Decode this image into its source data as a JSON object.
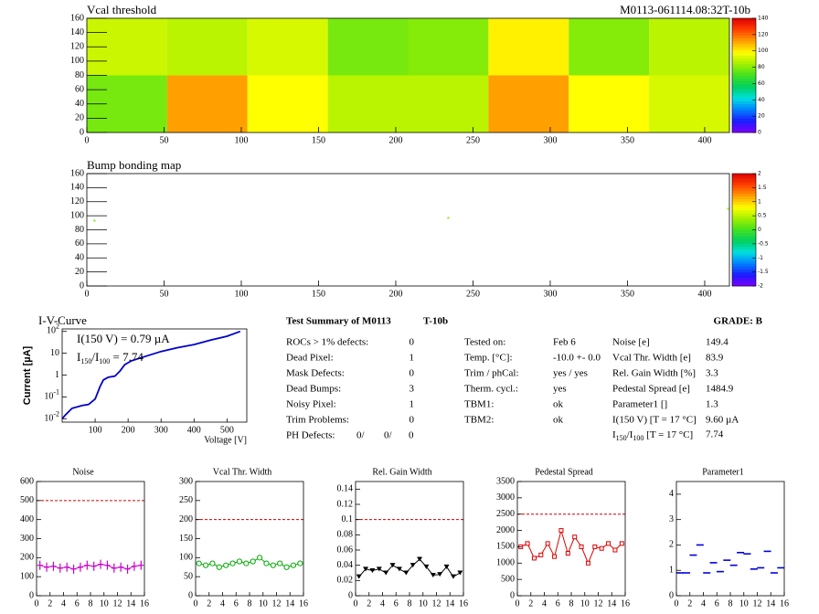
{
  "chart_data": [
    {
      "type": "heatmap",
      "title": "Vcal threshold",
      "subtitle": "M0113-061114.08:32T-10b",
      "x_edges": [
        0,
        52,
        104,
        156,
        208,
        260,
        312,
        364,
        416
      ],
      "y_edges": [
        0,
        80,
        160
      ],
      "z": [
        [
          78,
          112,
          98,
          88,
          88,
          112,
          98,
          92
        ],
        [
          90,
          88,
          92,
          78,
          80,
          100,
          80,
          88
        ]
      ],
      "xlim": [
        0,
        416
      ],
      "ylim": [
        0,
        160
      ],
      "xticks": [
        0,
        50,
        100,
        150,
        200,
        250,
        300,
        350,
        400
      ],
      "yticks": [
        0,
        20,
        40,
        60,
        80,
        100,
        120,
        140,
        160
      ],
      "zlim": [
        0,
        140
      ],
      "zticks": [
        0,
        20,
        40,
        60,
        80,
        100,
        120,
        140
      ],
      "colormap": [
        "#7f00ff",
        "#1a1aff",
        "#0080ff",
        "#00e0e0",
        "#00d060",
        "#40e020",
        "#a0f000",
        "#ffff00",
        "#ffa000",
        "#ff4000",
        "#e00000"
      ]
    },
    {
      "type": "heatmap",
      "title": "Bump bonding map",
      "x": [
        5,
        234,
        415
      ],
      "y": [
        93,
        97,
        110
      ],
      "values": [
        0.2,
        0.3,
        0.5
      ],
      "xlim": [
        0,
        416
      ],
      "ylim": [
        0,
        160
      ],
      "xticks": [
        0,
        50,
        100,
        150,
        200,
        250,
        300,
        350,
        400
      ],
      "yticks": [
        0,
        20,
        40,
        60,
        80,
        100,
        120,
        140,
        160
      ],
      "zlim": [
        -2,
        2
      ],
      "zticks": [
        -2,
        -1.5,
        -1,
        -0.5,
        0,
        0.5,
        1,
        1.5,
        2
      ],
      "colormap": [
        "#7f00ff",
        "#1a1aff",
        "#0080ff",
        "#00e0e0",
        "#00d060",
        "#40e020",
        "#a0f000",
        "#ffff00",
        "#ffa000",
        "#ff4000",
        "#e00000"
      ]
    },
    {
      "type": "line",
      "title": "I-V-Curve",
      "xlabel": "Voltage [V]",
      "ylabel": "Current [µA]",
      "log_y": true,
      "color": "#0000cc",
      "x": [
        0,
        10,
        30,
        60,
        80,
        100,
        115,
        125,
        140,
        160,
        175,
        190,
        210,
        250,
        300,
        350,
        400,
        450,
        500,
        540
      ],
      "values": [
        0.01,
        0.015,
        0.03,
        0.04,
        0.045,
        0.08,
        0.3,
        0.6,
        0.8,
        0.9,
        1.5,
        3,
        4.5,
        7,
        12,
        18,
        25,
        40,
        60,
        100
      ],
      "xlim": [
        0,
        560
      ],
      "ylim": [
        0.007,
        130
      ],
      "xticks": [
        100,
        200,
        300,
        400,
        500
      ],
      "yticks": [
        {
          "value": 0.01,
          "label": [
            "10",
            "-2"
          ]
        },
        {
          "value": 0.1,
          "label": [
            "10",
            "-1"
          ]
        },
        {
          "value": 1,
          "label": "1"
        },
        {
          "value": 10,
          "label": "10"
        },
        {
          "value": 100,
          "label": [
            "10",
            "2"
          ]
        }
      ],
      "annotations": [
        [
          "I(150 V) = 0.79 µA"
        ],
        [
          "I",
          "150",
          "/I",
          "100",
          " =  7.74"
        ]
      ]
    },
    {
      "type": "roc",
      "title": "Noise",
      "marker": "cross",
      "color": "#cc00cc",
      "threshold": 500,
      "x": [
        0.5,
        1.5,
        2.5,
        3.5,
        4.5,
        5.5,
        6.5,
        7.5,
        8.5,
        9.5,
        10.5,
        11.5,
        12.5,
        13.5,
        14.5,
        15.5
      ],
      "values": [
        160,
        150,
        155,
        145,
        150,
        140,
        150,
        160,
        155,
        165,
        160,
        145,
        150,
        140,
        155,
        160
      ],
      "xlim": [
        0,
        16
      ],
      "ylim": [
        0,
        600
      ],
      "xticks": [
        0,
        2,
        4,
        6,
        8,
        10,
        12,
        14,
        16
      ],
      "yticks": [
        0,
        100,
        200,
        300,
        400,
        500,
        600
      ]
    },
    {
      "type": "roc",
      "title": "Vcal Thr. Width",
      "marker": "circle",
      "color": "#00aa00",
      "threshold": 200,
      "x": [
        0.5,
        1.5,
        2.5,
        3.5,
        4.5,
        5.5,
        6.5,
        7.5,
        8.5,
        9.5,
        10.5,
        11.5,
        12.5,
        13.5,
        14.5,
        15.5
      ],
      "values": [
        85,
        80,
        85,
        75,
        80,
        85,
        90,
        85,
        90,
        100,
        85,
        80,
        85,
        75,
        80,
        85
      ],
      "xlim": [
        0,
        16
      ],
      "ylim": [
        0,
        300
      ],
      "xticks": [
        0,
        2,
        4,
        6,
        8,
        10,
        12,
        14,
        16
      ],
      "yticks": [
        0,
        50,
        100,
        150,
        200,
        250,
        300
      ]
    },
    {
      "type": "roc",
      "title": "Rel. Gain Width",
      "marker": "triangle",
      "color": "#000000",
      "threshold": 0.1,
      "x": [
        0.5,
        1.5,
        2.5,
        3.5,
        4.5,
        5.5,
        6.5,
        7.5,
        8.5,
        9.5,
        10.5,
        11.5,
        12.5,
        13.5,
        14.5,
        15.5
      ],
      "values": [
        0.025,
        0.035,
        0.033,
        0.035,
        0.03,
        0.04,
        0.035,
        0.03,
        0.04,
        0.048,
        0.038,
        0.027,
        0.028,
        0.038,
        0.025,
        0.03
      ],
      "xlim": [
        0,
        16
      ],
      "ylim": [
        0,
        0.15
      ],
      "xticks": [
        0,
        2,
        4,
        6,
        8,
        10,
        12,
        14,
        16
      ],
      "yticks": [
        0,
        0.02,
        0.04,
        0.06,
        0.08,
        0.1,
        0.12,
        0.14
      ]
    },
    {
      "type": "roc",
      "title": "Pedestal Spread",
      "marker": "square",
      "color": "#dd0000",
      "threshold": 2500,
      "x": [
        0.5,
        1.5,
        2.5,
        3.5,
        4.5,
        5.5,
        6.5,
        7.5,
        8.5,
        9.5,
        10.5,
        11.5,
        12.5,
        13.5,
        14.5,
        15.5
      ],
      "values": [
        1500,
        1600,
        1150,
        1250,
        1600,
        1200,
        2000,
        1300,
        1800,
        1500,
        1000,
        1500,
        1450,
        1600,
        1400,
        1600
      ],
      "xlim": [
        0,
        16
      ],
      "ylim": [
        0,
        3500
      ],
      "xticks": [
        0,
        2,
        4,
        6,
        8,
        10,
        12,
        14,
        16
      ],
      "yticks": [
        0,
        500,
        1000,
        1500,
        2000,
        2500,
        3000,
        3500
      ]
    },
    {
      "type": "roc",
      "title": "Parameter1",
      "marker": "dash",
      "color": "#0000dd",
      "x": [
        0.5,
        1.5,
        2.5,
        3.5,
        4.5,
        5.5,
        6.5,
        7.5,
        8.5,
        9.5,
        10.5,
        11.5,
        12.5,
        13.5,
        14.5,
        15.5
      ],
      "values": [
        0.9,
        0.9,
        1.6,
        2.0,
        0.9,
        1.3,
        0.95,
        1.4,
        1.2,
        1.7,
        1.65,
        1.05,
        1.1,
        1.75,
        0.9,
        1.1
      ],
      "xlim": [
        0,
        16
      ],
      "ylim": [
        0,
        4.5
      ],
      "xticks": [
        0,
        2,
        4,
        6,
        8,
        10,
        12,
        14,
        16
      ],
      "yticks": [
        0,
        1,
        2,
        3,
        4
      ]
    }
  ],
  "summary": {
    "title": "Test Summary of M0113",
    "tag": "T-10b",
    "grade": "GRADE:  B",
    "defects": [
      [
        "ROCs > 1% defects:",
        "0"
      ],
      [
        "Dead Pixel:",
        "1"
      ],
      [
        "Mask Defects:",
        "0"
      ],
      [
        "Dead Bumps:",
        "3"
      ],
      [
        "Noisy Pixel:",
        "1"
      ],
      [
        "Trim Problems:",
        "0"
      ]
    ],
    "ph_defects": {
      "label": "PH Defects:",
      "values": [
        "0/",
        "0/",
        "0"
      ],
      "colors": [
        "#000000",
        "#dd0000",
        "#0000cc"
      ]
    },
    "conditions": [
      [
        "Tested on:",
        "Feb 6"
      ],
      [
        "Temp. [°C]:",
        "-10.0 +- 0.0"
      ],
      [
        "Trim / phCal:",
        "yes / yes"
      ],
      [
        "Therm. cycl.:",
        "yes"
      ],
      [
        "TBM1:",
        "ok"
      ],
      [
        "TBM2:",
        "ok"
      ]
    ],
    "results": [
      [
        "Noise [e]",
        "149.4"
      ],
      [
        "Vcal Thr. Width [e]",
        "83.9"
      ],
      [
        "Rel. Gain Width [%]",
        "3.3"
      ],
      [
        "Pedestal Spread [e]",
        "1484.9"
      ],
      [
        "Parameter1 []",
        "1.3"
      ],
      [
        "I(150 V) [T = 17 °C]",
        "9.60 µA"
      ]
    ],
    "ratio": {
      "parts": [
        "I",
        "150",
        "/I",
        "100",
        "  [T = 17 °C]"
      ],
      "value": "7.74"
    }
  }
}
